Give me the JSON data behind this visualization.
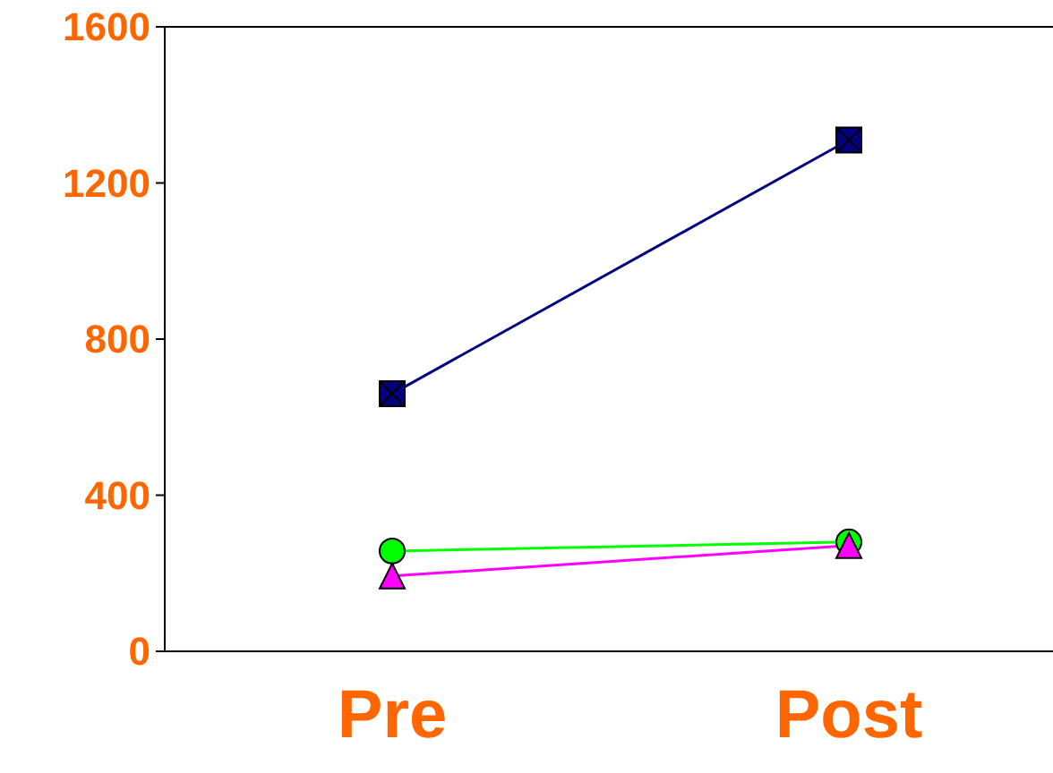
{
  "chart_data": {
    "type": "line",
    "categories": [
      "Pre",
      "Post"
    ],
    "ylim": [
      0,
      1600
    ],
    "yticks": [
      0,
      400,
      800,
      1200,
      1600
    ],
    "series": [
      {
        "color": "#000080",
        "values": [
          660,
          1310
        ],
        "marker": "square"
      },
      {
        "color": "#00ff00",
        "values": [
          257,
          280
        ],
        "marker": "circle"
      },
      {
        "color": "#ff00ff",
        "values": [
          193,
          271
        ],
        "marker": "triangle"
      }
    ]
  }
}
